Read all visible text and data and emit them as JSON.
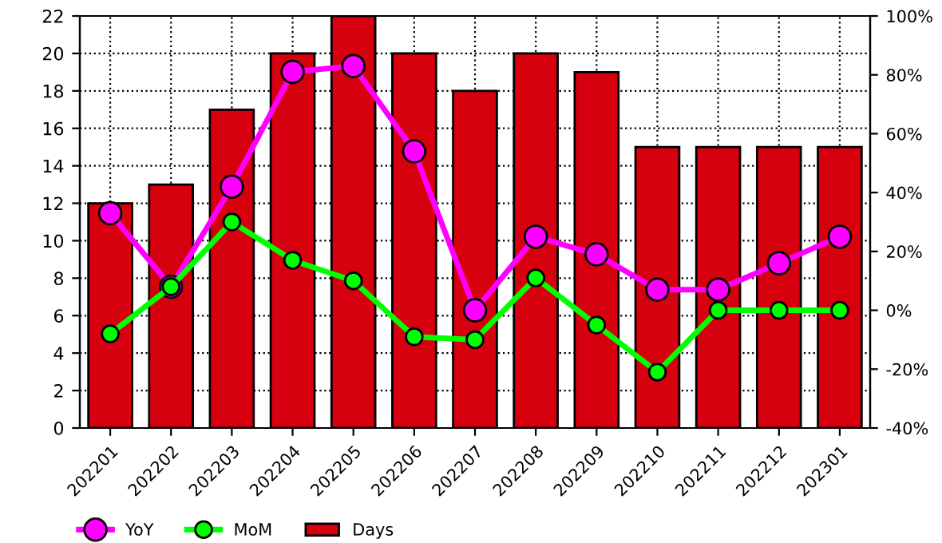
{
  "chart_data": {
    "type": "bar",
    "categories": [
      "202201",
      "202202",
      "202203",
      "202204",
      "202205",
      "202206",
      "202207",
      "202208",
      "202209",
      "202210",
      "202211",
      "202212",
      "202301"
    ],
    "series": [
      {
        "name": "YoY",
        "type": "line",
        "axis": "y2",
        "color": "#ff00ff",
        "values": [
          33,
          8,
          42,
          81,
          83,
          54,
          0,
          25,
          19,
          7,
          7,
          16,
          25
        ]
      },
      {
        "name": "MoM",
        "type": "line",
        "axis": "y2",
        "color": "#00ff00",
        "values": [
          -8,
          8,
          30,
          17,
          10,
          -9,
          -10,
          11,
          -5,
          -21,
          0,
          0,
          0
        ]
      },
      {
        "name": "Days",
        "color": "#d7000f",
        "values": [
          12,
          13,
          17,
          20,
          22,
          20,
          18,
          20,
          19,
          15,
          15,
          15,
          15
        ]
      }
    ],
    "ylim": [
      0,
      22
    ],
    "yticks": [
      0,
      2,
      4,
      6,
      8,
      10,
      12,
      14,
      16,
      18,
      20,
      22
    ],
    "y2lim": [
      -40,
      100
    ],
    "y2ticks": [
      {
        "value": -40,
        "label": "-40%"
      },
      {
        "value": -20,
        "label": "-20%"
      },
      {
        "value": 0,
        "label": "0%"
      },
      {
        "value": 20,
        "label": "20%"
      },
      {
        "value": 40,
        "label": "40%"
      },
      {
        "value": 60,
        "label": "60%"
      },
      {
        "value": 80,
        "label": "80%"
      },
      {
        "value": 100,
        "label": "100%"
      }
    ],
    "grid": true,
    "legend": "bottom left",
    "marker": "circle",
    "line_style": "solid"
  }
}
